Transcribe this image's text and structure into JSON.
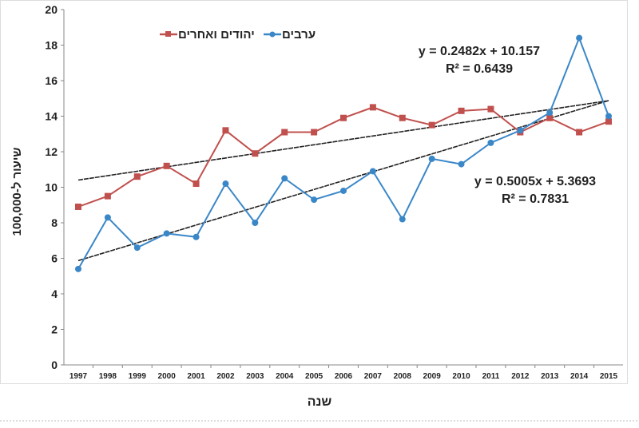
{
  "chart_data": {
    "type": "line",
    "xlabel": "שנה",
    "ylabel": "שיעור ל-100,000",
    "ylim": [
      0,
      20
    ],
    "yticks": [
      0,
      2,
      4,
      6,
      8,
      10,
      12,
      14,
      16,
      18,
      20
    ],
    "grid": false,
    "legend_placement": "top-left",
    "categories": [
      "1997",
      "1998",
      "1999",
      "2000",
      "2001",
      "2002",
      "2003",
      "2004",
      "2005",
      "2006",
      "2007",
      "2008",
      "2009",
      "2010",
      "2011",
      "2012",
      "2013",
      "2014",
      "2015"
    ],
    "series": [
      {
        "name": "יהודים ואחרים",
        "color": "#c0504d",
        "marker": "square",
        "values": [
          8.9,
          9.5,
          10.6,
          11.2,
          10.2,
          13.2,
          11.9,
          13.1,
          13.1,
          13.9,
          14.5,
          13.9,
          13.5,
          14.3,
          14.4,
          13.1,
          13.9,
          13.1,
          13.7
        ]
      },
      {
        "name": "ערבים",
        "color": "#3a87c8",
        "marker": "circle",
        "values": [
          5.4,
          8.3,
          6.6,
          7.4,
          7.2,
          10.2,
          8.0,
          10.5,
          9.3,
          9.8,
          10.9,
          8.2,
          11.6,
          11.3,
          12.5,
          13.2,
          14.2,
          18.4,
          14.0
        ]
      }
    ],
    "trendlines": [
      {
        "series": "יהודים ואחרים",
        "slope": 0.2482,
        "intercept": 10.157,
        "equation": "y = 0.2482x + 10.157",
        "r2": "R² = 0.6439"
      },
      {
        "series": "ערבים",
        "slope": 0.5005,
        "intercept": 5.3693,
        "equation": "y = 0.5005x + 5.3693",
        "r2": "R² = 0.7831"
      }
    ]
  }
}
